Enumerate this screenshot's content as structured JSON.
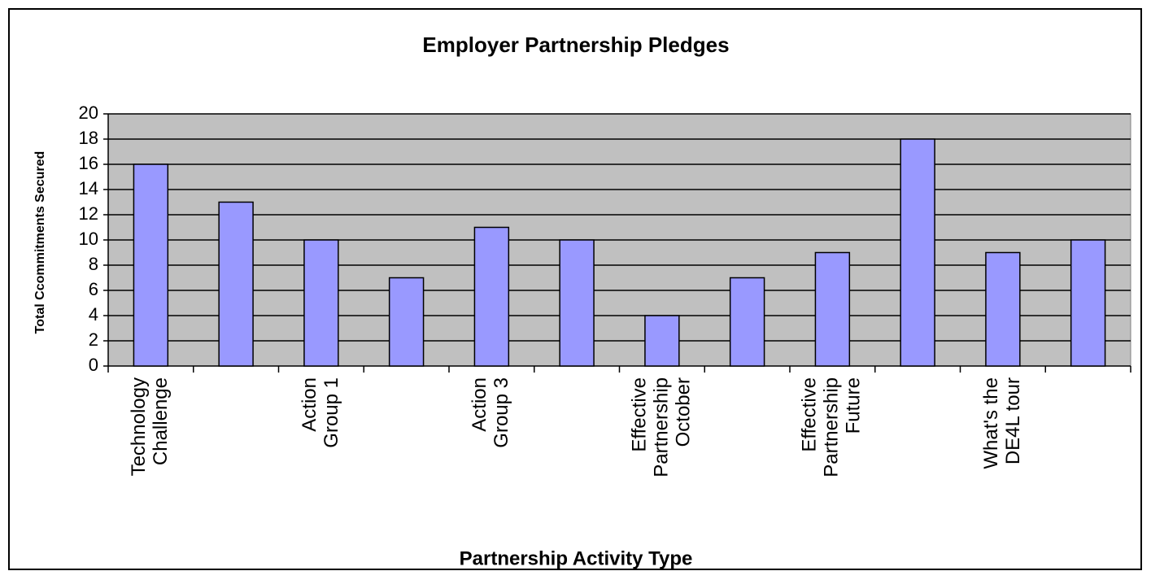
{
  "chart_data": {
    "type": "bar",
    "title": "Employer Partnership Pledges",
    "x_label": "Partnership Activity Type",
    "y_label": "Total Ccommitments Secured",
    "categories": [
      "Technology Challenge",
      null,
      "Action Group 1",
      null,
      "Action Group 3",
      null,
      "Effective Partnership October",
      null,
      "Effective Partnership Future",
      null,
      "What's the DE4L tour",
      null
    ],
    "values": [
      16,
      13,
      10,
      7,
      11,
      10,
      4,
      7,
      9,
      18,
      9,
      10
    ],
    "color": "#9999ff",
    "plot_background": "#c0c0c0",
    "ylim": [
      0,
      20
    ],
    "yticks": [
      0,
      2,
      4,
      6,
      8,
      10,
      12,
      14,
      16,
      18,
      20
    ],
    "grid": true
  }
}
